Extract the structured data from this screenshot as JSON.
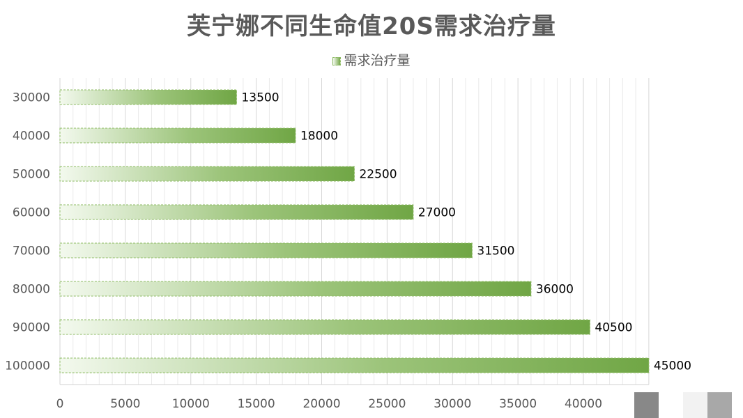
{
  "chart_data": {
    "type": "bar",
    "orientation": "horizontal",
    "title": "芙宁娜不同生命值20S需求治疗量",
    "legend_position": "top",
    "categories": [
      "30000",
      "40000",
      "50000",
      "60000",
      "70000",
      "80000",
      "90000",
      "100000"
    ],
    "series": [
      {
        "name": "需求治疗量",
        "values": [
          13500,
          18000,
          22500,
          27000,
          31500,
          36000,
          40500,
          45000
        ],
        "color_start": "#f3f9ee",
        "color_end": "#70a645"
      }
    ],
    "x_ticks": [
      "0",
      "5000",
      "10000",
      "15000",
      "20000",
      "25000",
      "30000",
      "35000",
      "40000"
    ],
    "xlim": [
      0,
      45000
    ],
    "grid": true,
    "data_labels": true
  }
}
